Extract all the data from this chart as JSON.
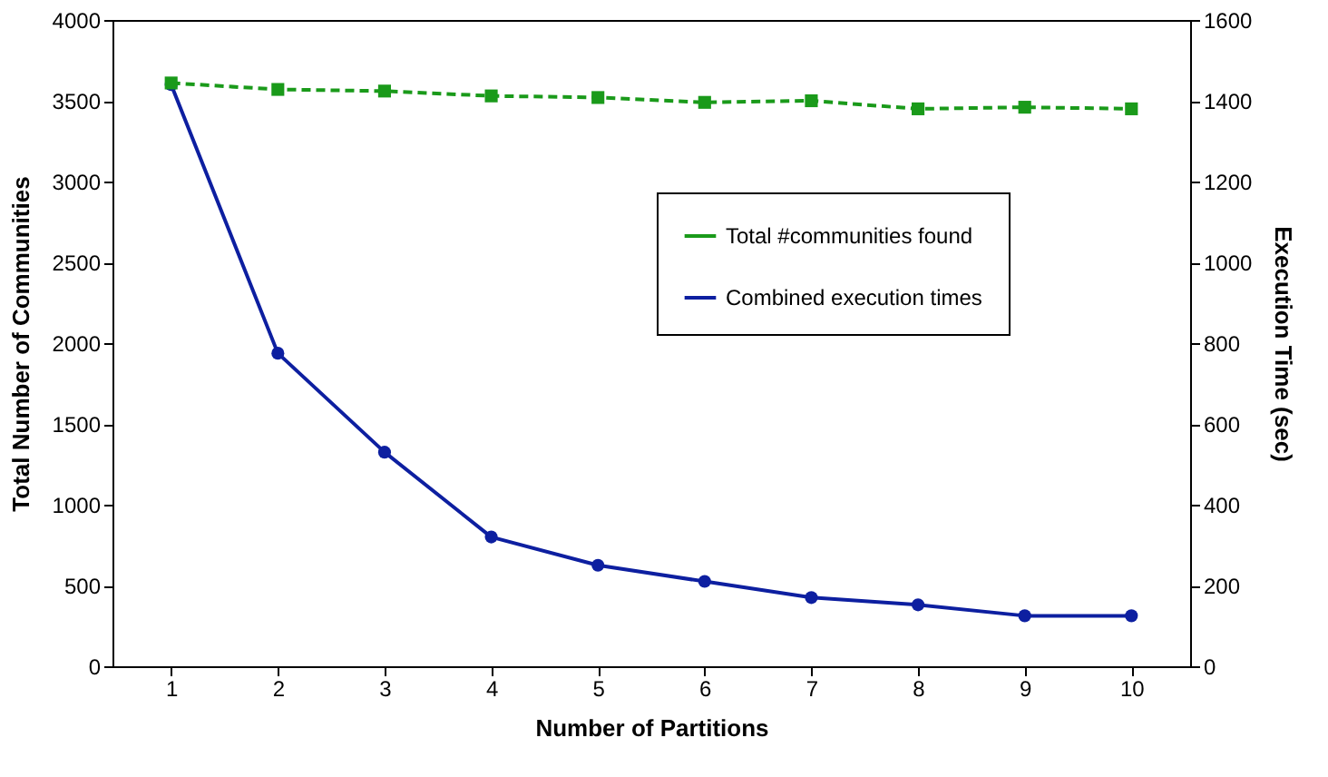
{
  "chart_data": {
    "type": "line",
    "xlabel": "Number of Partitions",
    "ylabel": "Total Number of Communities",
    "y2label": "Execution Time  (sec)",
    "categories": [
      "1",
      "2",
      "3",
      "4",
      "5",
      "6",
      "7",
      "8",
      "9",
      "10"
    ],
    "series": [
      {
        "name": "Total #communities found",
        "color": "#1a9a1a",
        "marker": "square",
        "line_style": "dashed",
        "values": [
          3610,
          3570,
          3560,
          3530,
          3520,
          3490,
          3500,
          3450,
          3460,
          3450
        ]
      },
      {
        "name": "Combined execution times",
        "color": "#0d1fa0",
        "marker": "circle",
        "line_style": "solid",
        "axis": "y2",
        "values": [
          1440,
          775,
          530,
          320,
          250,
          210,
          170,
          152,
          125,
          125
        ]
      }
    ],
    "ylim": [
      0,
      4000
    ],
    "yticks": [
      0,
      500,
      1000,
      1500,
      2000,
      2500,
      3000,
      3500,
      4000
    ],
    "y2lim": [
      0,
      1600
    ],
    "y2ticks": [
      0,
      200,
      400,
      600,
      800,
      1000,
      1200,
      1400,
      1600
    ],
    "grid": false,
    "legend": "top right"
  }
}
